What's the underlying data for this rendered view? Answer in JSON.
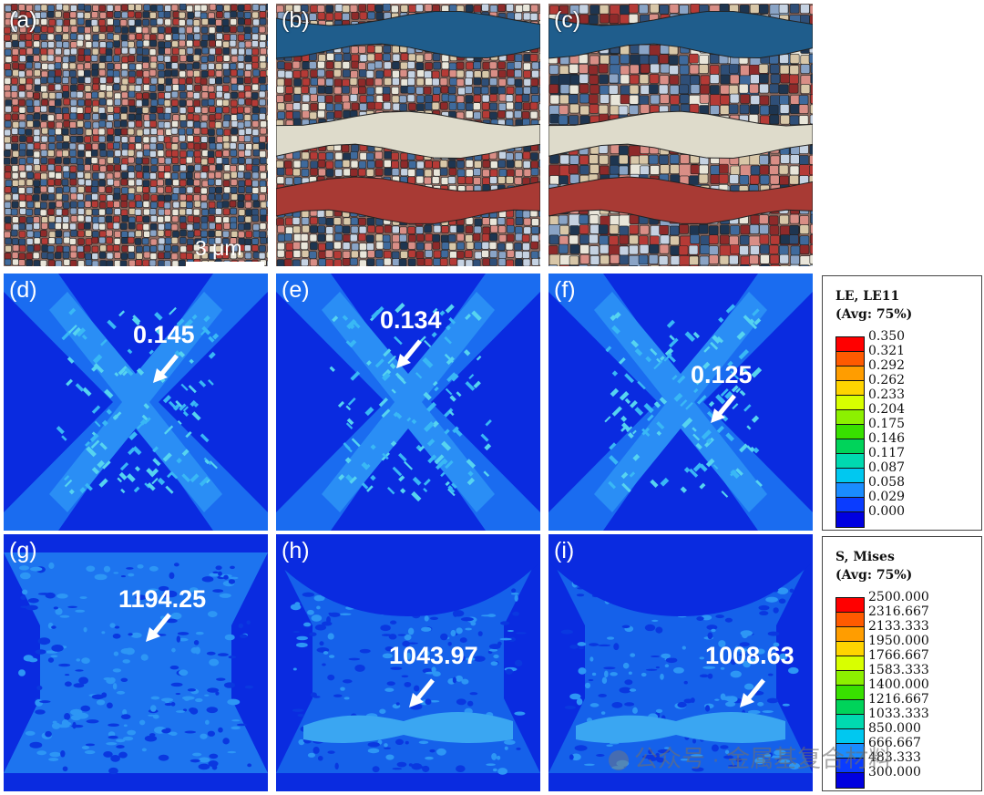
{
  "panels": {
    "a": {
      "label": "(a)",
      "scale_text": "3 μm"
    },
    "b": {
      "label": "(b)"
    },
    "c": {
      "label": "(c)"
    },
    "d": {
      "label": "(d)",
      "value": "0.145"
    },
    "e": {
      "label": "(e)",
      "value": "0.134"
    },
    "f": {
      "label": "(f)",
      "value": "0.125"
    },
    "g": {
      "label": "(g)",
      "value": "1194.25"
    },
    "h": {
      "label": "(h)",
      "value": "1043.97"
    },
    "i": {
      "label": "(i)",
      "value": "1008.63"
    }
  },
  "legend_strain": {
    "title1": "LE, LE11",
    "title2": "(Avg: 75%)",
    "ticks": [
      "0.350",
      "0.321",
      "0.292",
      "0.262",
      "0.233",
      "0.204",
      "0.175",
      "0.146",
      "0.117",
      "0.087",
      "0.058",
      "0.029",
      "0.000"
    ]
  },
  "legend_stress": {
    "title1": "S, Mises",
    "title2": "(Avg: 75%)",
    "ticks": [
      "2500.000",
      "2316.667",
      "2133.333",
      "1950.000",
      "1766.667",
      "1583.333",
      "1400.000",
      "1216.667",
      "1033.333",
      "850.000",
      "666.667",
      "483.333",
      "300.000"
    ]
  },
  "colorbar": [
    "#ff0000",
    "#ff5a00",
    "#ff9d00",
    "#ffd400",
    "#d8ff00",
    "#8cf000",
    "#38e000",
    "#00d35a",
    "#00d9b0",
    "#00c8f0",
    "#1a8cff",
    "#0a3cff",
    "#0000e0"
  ],
  "grain_colors": [
    "#2f4f78",
    "#3f6a9c",
    "#8aa4c6",
    "#c5d2e2",
    "#e9e6da",
    "#d8c7a8",
    "#b53a36",
    "#8e2a2a",
    "#d98e86",
    "#1e3550"
  ],
  "band_colors": {
    "blue": "#1f5d8c",
    "cream": "#dedbcb",
    "red": "#a83a34"
  },
  "watermark": "公众号 · 金属基复合材料"
}
